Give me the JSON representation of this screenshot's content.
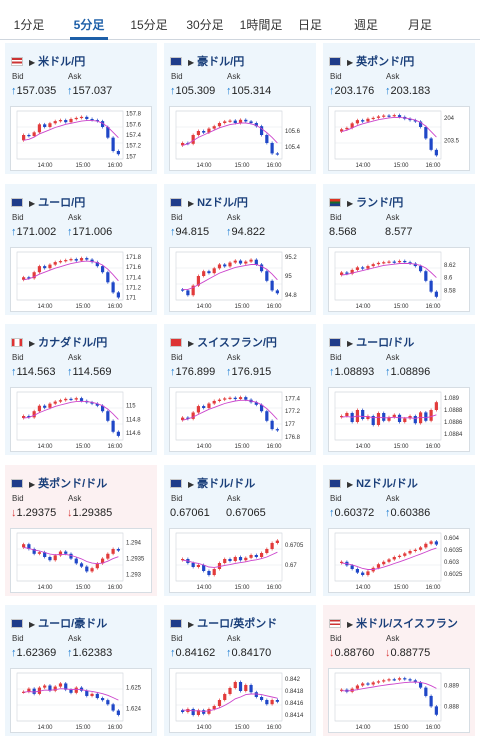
{
  "tabs": [
    {
      "label": "1分足",
      "active": false
    },
    {
      "label": "5分足",
      "active": true
    },
    {
      "label": "15分足",
      "active": false
    },
    {
      "label": "30分足",
      "active": false
    },
    {
      "label": "1時間足",
      "active": false
    },
    {
      "label": "日足",
      "active": false
    },
    {
      "label": "週足",
      "active": false
    },
    {
      "label": "月足",
      "active": false
    }
  ],
  "labels": {
    "bid": "Bid",
    "ask": "Ask"
  },
  "colors": {
    "up_arrow": "#1c7bd1",
    "down_arrow": "#d83a3a",
    "candle_up": "#e23b3b",
    "candle_down": "#1f47c7",
    "ma_line": "#cc44cc",
    "card_up_bg": "#eef6fc",
    "card_down_bg": "#fcf1f2"
  },
  "cards": [
    {
      "pair": "米ドル/円",
      "flag": "flag-us-jp",
      "dir": "up",
      "bid": "157.035",
      "ask": "157.037",
      "chart_data": {
        "type": "candlestick",
        "y_ticks": [
          "157.8",
          "157.6",
          "157.4",
          "157.2",
          "157"
        ],
        "x_ticks": [
          "14:00",
          "15:00",
          "16:00"
        ],
        "ylim": [
          156.95,
          157.85
        ],
        "close": [
          157.4,
          157.38,
          157.45,
          157.6,
          157.55,
          157.62,
          157.66,
          157.68,
          157.64,
          157.7,
          157.72,
          157.74,
          157.7,
          157.68,
          157.66,
          157.55,
          157.35,
          157.1,
          157.04
        ],
        "ma": [
          157.3,
          157.32,
          157.36,
          157.42,
          157.46,
          157.5,
          157.54,
          157.57,
          157.6,
          157.62,
          157.64,
          157.66,
          157.67,
          157.67,
          157.66,
          157.62,
          157.55,
          157.45,
          157.35
        ]
      }
    },
    {
      "pair": "豪ドル/円",
      "flag": "flag-au-jp",
      "dir": "up",
      "bid": "105.309",
      "ask": "105.314",
      "chart_data": {
        "type": "candlestick",
        "y_ticks": [
          "105.6",
          "105.4"
        ],
        "x_ticks": [
          "14:00",
          "15:00",
          "16:00"
        ],
        "ylim": [
          105.25,
          105.85
        ],
        "close": [
          105.45,
          105.44,
          105.55,
          105.6,
          105.58,
          105.63,
          105.66,
          105.7,
          105.72,
          105.73,
          105.7,
          105.74,
          105.72,
          105.7,
          105.66,
          105.55,
          105.45,
          105.32,
          105.31
        ],
        "ma": [
          105.42,
          105.44,
          105.48,
          105.52,
          105.55,
          105.58,
          105.61,
          105.64,
          105.66,
          105.68,
          105.69,
          105.7,
          105.7,
          105.69,
          105.67,
          105.63,
          105.58,
          105.52,
          105.45
        ]
      }
    },
    {
      "pair": "英ポンド/円",
      "flag": "flag-gb-jp",
      "dir": "up",
      "bid": "203.176",
      "ask": "203.183",
      "chart_data": {
        "type": "candlestick",
        "y_ticks": [
          "204",
          "203.5"
        ],
        "x_ticks": [
          "14:00",
          "15:00",
          "16:00"
        ],
        "ylim": [
          203.1,
          204.15
        ],
        "close": [
          203.75,
          203.78,
          203.88,
          203.95,
          203.92,
          203.98,
          204.0,
          204.03,
          204.05,
          204.04,
          204.06,
          204.02,
          203.98,
          203.95,
          203.92,
          203.8,
          203.55,
          203.3,
          203.18
        ],
        "ma": [
          203.7,
          203.73,
          203.78,
          203.83,
          203.87,
          203.9,
          203.93,
          203.96,
          203.98,
          204.0,
          204.01,
          204.01,
          204.0,
          203.98,
          203.95,
          203.9,
          203.82,
          203.7,
          203.58
        ]
      }
    },
    {
      "pair": "ユーロ/円",
      "flag": "flag-eu-jp",
      "dir": "up",
      "bid": "171.002",
      "ask": "171.006",
      "chart_data": {
        "type": "candlestick",
        "y_ticks": [
          "171.8",
          "171.6",
          "171.4",
          "171.2",
          "171"
        ],
        "x_ticks": [
          "14:00",
          "15:00",
          "16:00"
        ],
        "ylim": [
          170.95,
          171.9
        ],
        "close": [
          171.4,
          171.38,
          171.5,
          171.62,
          171.58,
          171.65,
          171.7,
          171.72,
          171.74,
          171.76,
          171.73,
          171.78,
          171.75,
          171.7,
          171.62,
          171.5,
          171.3,
          171.1,
          171.0
        ],
        "ma": [
          171.35,
          171.37,
          171.41,
          171.46,
          171.5,
          171.54,
          171.58,
          171.61,
          171.64,
          171.67,
          171.69,
          171.71,
          171.72,
          171.71,
          171.69,
          171.64,
          171.56,
          171.45,
          171.33
        ]
      }
    },
    {
      "pair": "NZドル/円",
      "flag": "flag-nz-jp",
      "dir": "up",
      "bid": "94.815",
      "ask": "94.822",
      "chart_data": {
        "type": "candlestick",
        "y_ticks": [
          "95.2",
          "95",
          "94.8"
        ],
        "x_ticks": [
          "14:00",
          "15:00",
          "16:00"
        ],
        "ylim": [
          94.75,
          95.25
        ],
        "close": [
          94.85,
          94.8,
          94.9,
          95.0,
          95.05,
          95.03,
          95.08,
          95.12,
          95.1,
          95.14,
          95.16,
          95.13,
          95.15,
          95.17,
          95.12,
          95.05,
          94.95,
          94.85,
          94.82
        ],
        "ma": [
          94.86,
          94.86,
          94.88,
          94.91,
          94.94,
          94.97,
          95.0,
          95.03,
          95.05,
          95.07,
          95.09,
          95.1,
          95.11,
          95.12,
          95.12,
          95.1,
          95.07,
          95.02,
          94.96
        ]
      }
    },
    {
      "pair": "ランド/円",
      "flag": "flag-za-jp",
      "dir": "none",
      "bid": "8.568",
      "ask": "8.577",
      "chart_data": {
        "type": "candlestick",
        "y_ticks": [
          "8.62",
          "8.6",
          "8.58"
        ],
        "x_ticks": [
          "14:00",
          "15:00",
          "16:00"
        ],
        "ylim": [
          8.565,
          8.64
        ],
        "close": [
          8.608,
          8.606,
          8.612,
          8.616,
          8.614,
          8.618,
          8.621,
          8.623,
          8.624,
          8.625,
          8.624,
          8.626,
          8.624,
          8.622,
          8.618,
          8.61,
          8.595,
          8.578,
          8.57
        ],
        "ma": [
          8.604,
          8.605,
          8.607,
          8.609,
          8.611,
          8.613,
          8.615,
          8.617,
          8.619,
          8.62,
          8.621,
          8.622,
          8.622,
          8.622,
          8.621,
          8.619,
          8.615,
          8.608,
          8.6
        ]
      }
    },
    {
      "pair": "カナダドル/円",
      "flag": "flag-ca-jp",
      "dir": "up",
      "bid": "114.563",
      "ask": "114.569",
      "chart_data": {
        "type": "candlestick",
        "y_ticks": [
          "115",
          "114.8",
          "114.6"
        ],
        "x_ticks": [
          "14:00",
          "15:00",
          "16:00"
        ],
        "ylim": [
          114.5,
          115.2
        ],
        "close": [
          114.85,
          114.83,
          114.92,
          115.0,
          114.97,
          115.03,
          115.06,
          115.08,
          115.1,
          115.09,
          115.11,
          115.07,
          115.05,
          115.03,
          115.0,
          114.92,
          114.78,
          114.62,
          114.56
        ],
        "ma": [
          114.82,
          114.83,
          114.86,
          114.9,
          114.93,
          114.96,
          114.99,
          115.01,
          115.03,
          115.05,
          115.06,
          115.06,
          115.06,
          115.05,
          115.03,
          115.0,
          114.95,
          114.88,
          114.8
        ]
      }
    },
    {
      "pair": "スイスフラン/円",
      "flag": "flag-ch-jp",
      "dir": "up",
      "bid": "176.899",
      "ask": "176.915",
      "chart_data": {
        "type": "candlestick",
        "y_ticks": [
          "177.4",
          "177.2",
          "177",
          "176.8"
        ],
        "x_ticks": [
          "14:00",
          "15:00",
          "16:00"
        ],
        "ylim": [
          176.75,
          177.5
        ],
        "close": [
          177.1,
          177.08,
          177.18,
          177.28,
          177.25,
          177.32,
          177.36,
          177.38,
          177.4,
          177.41,
          177.39,
          177.42,
          177.38,
          177.34,
          177.3,
          177.2,
          177.05,
          176.92,
          176.9
        ],
        "ma": [
          177.06,
          177.08,
          177.11,
          177.15,
          177.19,
          177.23,
          177.26,
          177.29,
          177.32,
          177.34,
          177.36,
          177.37,
          177.37,
          177.36,
          177.34,
          177.3,
          177.24,
          177.16,
          177.07
        ]
      }
    },
    {
      "pair": "ユーロ/ドル",
      "flag": "flag-eu-us",
      "dir": "up",
      "bid": "1.08893",
      "ask": "1.08896",
      "chart_data": {
        "type": "candlestick",
        "y_ticks": [
          "1.089",
          "1.0888",
          "1.0886",
          "1.0884"
        ],
        "x_ticks": [
          "14:00",
          "15:00",
          "16:00"
        ],
        "ylim": [
          1.0883,
          1.0891
        ],
        "close": [
          1.0887,
          1.08875,
          1.0886,
          1.0888,
          1.08865,
          1.0887,
          1.08855,
          1.08875,
          1.08862,
          1.08868,
          1.08872,
          1.0886,
          1.08866,
          1.0887,
          1.08858,
          1.08876,
          1.08862,
          1.0888,
          1.08893
        ],
        "ma": [
          1.08868,
          1.08869,
          1.08868,
          1.0887,
          1.08869,
          1.08869,
          1.08867,
          1.08868,
          1.08867,
          1.08867,
          1.08868,
          1.08867,
          1.08867,
          1.08867,
          1.08866,
          1.08868,
          1.08867,
          1.08869,
          1.08872
        ]
      }
    },
    {
      "pair": "英ポンド/ドル",
      "flag": "flag-gb-us",
      "dir": "down",
      "bid": "1.29375",
      "ask": "1.29385",
      "chart_data": {
        "type": "candlestick",
        "y_ticks": [
          "1.294",
          "1.2935",
          "1.293"
        ],
        "x_ticks": [
          "14:00",
          "15:00",
          "16:00"
        ],
        "ylim": [
          1.2928,
          1.2943
        ],
        "close": [
          1.29395,
          1.2938,
          1.29365,
          1.2937,
          1.29355,
          1.29345,
          1.2936,
          1.29372,
          1.29365,
          1.2935,
          1.29335,
          1.29325,
          1.2931,
          1.2932,
          1.29335,
          1.2935,
          1.29365,
          1.2938,
          1.29375
        ],
        "ma": [
          1.29385,
          1.29382,
          1.29377,
          1.29374,
          1.29369,
          1.29364,
          1.29362,
          1.29363,
          1.29363,
          1.2936,
          1.29355,
          1.29349,
          1.29341,
          1.29336,
          1.29334,
          1.29336,
          1.29342,
          1.2935,
          1.29356
        ]
      }
    },
    {
      "pair": "豪ドル/ドル",
      "flag": "flag-au-us",
      "dir": "none",
      "bid": "0.67061",
      "ask": "0.67065",
      "chart_data": {
        "type": "candlestick",
        "y_ticks": [
          "0.6705",
          "0.67"
        ],
        "x_ticks": [
          "14:00",
          "15:00",
          "16:00"
        ],
        "ylim": [
          0.6696,
          0.6708
        ],
        "close": [
          0.67015,
          0.67005,
          0.66995,
          0.67,
          0.66985,
          0.66975,
          0.6699,
          0.67005,
          0.67015,
          0.6701,
          0.6702,
          0.67012,
          0.67018,
          0.67025,
          0.6702,
          0.6703,
          0.6704,
          0.67055,
          0.67061
        ],
        "ma": [
          0.67012,
          0.6701,
          0.67006,
          0.67004,
          0.67,
          0.66995,
          0.66994,
          0.66996,
          0.66999,
          0.67001,
          0.67004,
          0.67006,
          0.67008,
          0.67011,
          0.67013,
          0.67016,
          0.6702,
          0.67026,
          0.67032
        ]
      }
    },
    {
      "pair": "NZドル/ドル",
      "flag": "flag-nz-us",
      "dir": "up",
      "bid": "0.60372",
      "ask": "0.60386",
      "chart_data": {
        "type": "candlestick",
        "y_ticks": [
          "0.604",
          "0.6035",
          "0.603",
          "0.6025"
        ],
        "x_ticks": [
          "14:00",
          "15:00",
          "16:00"
        ],
        "ylim": [
          0.6022,
          0.6042
        ],
        "close": [
          0.603,
          0.60285,
          0.6027,
          0.60255,
          0.60245,
          0.6026,
          0.60275,
          0.6029,
          0.603,
          0.6031,
          0.6032,
          0.60325,
          0.60335,
          0.60345,
          0.6035,
          0.6036,
          0.60375,
          0.60385,
          0.60372
        ],
        "ma": [
          0.60295,
          0.60292,
          0.60287,
          0.6028,
          0.60272,
          0.60268,
          0.60268,
          0.60272,
          0.60278,
          0.60285,
          0.60293,
          0.603,
          0.60308,
          0.60316,
          0.60324,
          0.60332,
          0.60341,
          0.6035,
          0.60357
        ]
      }
    },
    {
      "pair": "ユーロ/豪ドル",
      "flag": "flag-eu-au",
      "dir": "up",
      "bid": "1.62369",
      "ask": "1.62383",
      "chart_data": {
        "type": "candlestick",
        "y_ticks": [
          "1.625",
          "1.624"
        ],
        "x_ticks": [
          "14:00",
          "15:00",
          "16:00"
        ],
        "ylim": [
          1.6234,
          1.6257
        ],
        "close": [
          1.6248,
          1.62495,
          1.6247,
          1.625,
          1.6251,
          1.62485,
          1.62505,
          1.6252,
          1.6249,
          1.62475,
          1.625,
          1.62485,
          1.6246,
          1.6247,
          1.6245,
          1.6244,
          1.6242,
          1.6239,
          1.62369
        ],
        "ma": [
          1.62478,
          1.62481,
          1.62479,
          1.62483,
          1.62488,
          1.62487,
          1.6249,
          1.62495,
          1.62494,
          1.62491,
          1.62492,
          1.6249,
          1.62485,
          1.62482,
          1.62477,
          1.62471,
          1.62463,
          1.62452,
          1.6244
        ]
      }
    },
    {
      "pair": "ユーロ/英ポンド",
      "flag": "flag-eu-gb",
      "dir": "up",
      "bid": "0.84162",
      "ask": "0.84170",
      "chart_data": {
        "type": "candlestick",
        "y_ticks": [
          "0.842",
          "0.8418",
          "0.8416",
          "0.8414"
        ],
        "x_ticks": [
          "14:00",
          "15:00",
          "16:00"
        ],
        "ylim": [
          0.8413,
          0.8421
        ],
        "close": [
          0.84145,
          0.8415,
          0.8414,
          0.84148,
          0.84142,
          0.8415,
          0.84155,
          0.84165,
          0.84175,
          0.84185,
          0.84195,
          0.8418,
          0.8419,
          0.84178,
          0.8417,
          0.84165,
          0.84158,
          0.84165,
          0.84162
        ],
        "ma": [
          0.84148,
          0.84148,
          0.84147,
          0.84147,
          0.84146,
          0.84147,
          0.84149,
          0.84152,
          0.84156,
          0.84161,
          0.84167,
          0.8417,
          0.84174,
          0.84175,
          0.84175,
          0.84174,
          0.84172,
          0.8417,
          0.84168
        ]
      }
    },
    {
      "pair": "米ドル/スイスフラン",
      "flag": "flag-us-ch",
      "dir": "down",
      "bid": "0.88760",
      "ask": "0.88775",
      "chart_data": {
        "type": "candlestick",
        "y_ticks": [
          "0.889",
          "0.888"
        ],
        "x_ticks": [
          "14:00",
          "15:00",
          "16:00"
        ],
        "ylim": [
          0.8873,
          0.8896
        ],
        "close": [
          0.8888,
          0.8887,
          0.88885,
          0.889,
          0.8891,
          0.88905,
          0.88915,
          0.8892,
          0.88925,
          0.8893,
          0.88928,
          0.88935,
          0.8893,
          0.88925,
          0.88915,
          0.8889,
          0.8885,
          0.888,
          0.8876
        ],
        "ma": [
          0.88875,
          0.88874,
          0.88876,
          0.8888,
          0.88885,
          0.88889,
          0.88893,
          0.88897,
          0.88901,
          0.88905,
          0.88908,
          0.88911,
          0.88914,
          0.88916,
          0.88917,
          0.88915,
          0.88909,
          0.88899,
          0.88886
        ]
      }
    }
  ]
}
